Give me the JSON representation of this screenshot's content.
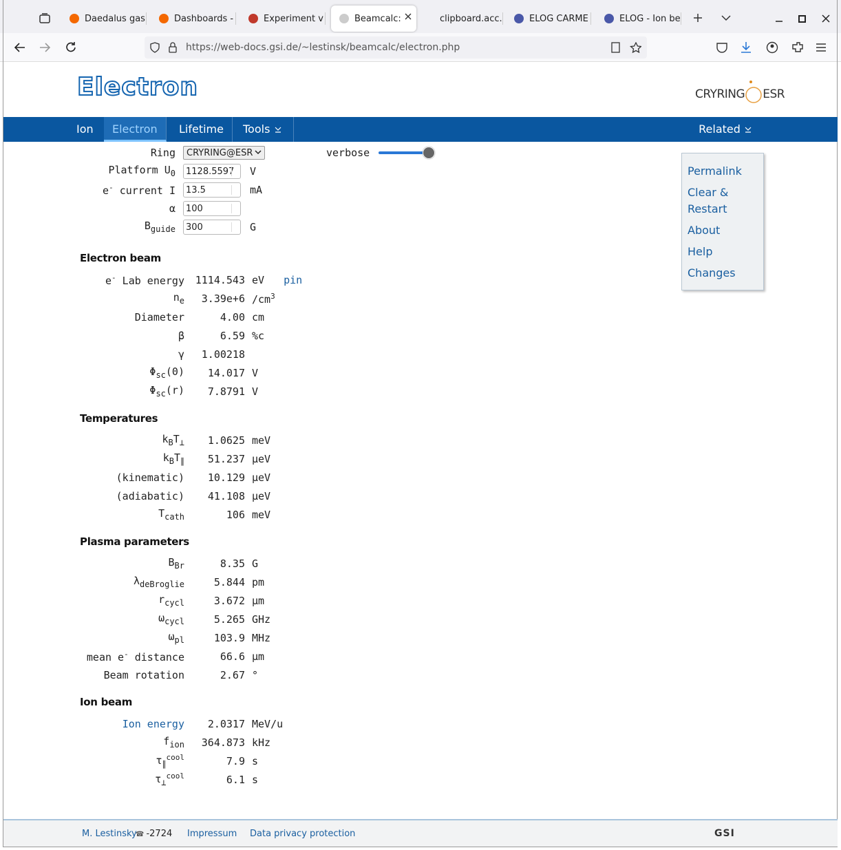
{
  "browser": {
    "tabs": [
      "Daedalus gas",
      "Dashboards -",
      "Experiment v",
      "Beamcalc: E",
      "clipboard.acc.gsi",
      "ELOG CARME",
      "ELOG - Ion be"
    ],
    "active_tab": 3,
    "url": "https://web-docs.gsi.de/~lestinsk/beamcalc/electron.php"
  },
  "header": {
    "title": "Electron",
    "logo_left": "CRYRING",
    "logo_right": "ESR"
  },
  "nav": {
    "items": [
      "Ion",
      "Electron",
      "Lifetime",
      "Tools"
    ],
    "active": 1,
    "related": "Related"
  },
  "inputs": {
    "ring": {
      "label": "Ring",
      "value": "CRYRING@ESR"
    },
    "verbose": "verbose",
    "fields": [
      {
        "label": [
          {
            "text": "Platform U"
          },
          {
            "text": "0",
            "sub": true
          }
        ],
        "value": "1128.5597",
        "unit": "V"
      },
      {
        "label": [
          {
            "text": "e"
          },
          {
            "text": "-",
            "sup": true
          },
          {
            "text": " current I"
          }
        ],
        "value": "13.5",
        "unit": "mA"
      },
      {
        "label": "α",
        "value": "100"
      },
      {
        "label": [
          {
            "text": "B"
          },
          {
            "text": "guide",
            "sub": true
          }
        ],
        "value": "300",
        "unit": "G"
      }
    ]
  },
  "sidebar": [
    "Permalink",
    "Clear & Restart",
    "About",
    "Help",
    "Changes"
  ],
  "sections": [
    {
      "title": "Electron beam",
      "rows": [
        {
          "label": [
            {
              "text": "e"
            },
            {
              "text": "-",
              "sup": true
            },
            {
              "text": " Lab energy"
            }
          ],
          "value": "1114.543",
          "unit": "eV",
          "link": "pin"
        },
        {
          "label": [
            {
              "text": "n"
            },
            {
              "text": "e",
              "sub": true
            }
          ],
          "value": "3.39e+6",
          "unit": [
            {
              "text": "/cm"
            },
            {
              "text": "3",
              "sup": true
            }
          ]
        },
        {
          "label": "Diameter",
          "value": "4.00",
          "unit": "cm"
        },
        {
          "label": "β",
          "value": "6.59",
          "unit": "%c"
        },
        {
          "label": "γ",
          "value": "1.00218"
        },
        {
          "label": [
            {
              "text": "Φ"
            },
            {
              "text": "sc",
              "sub": true
            },
            {
              "text": "(0)"
            }
          ],
          "value": "14.017",
          "unit": "V"
        },
        {
          "label": [
            {
              "text": "Φ"
            },
            {
              "text": "sc",
              "sub": true
            },
            {
              "text": "(r)"
            }
          ],
          "value": "7.8791",
          "unit": "V"
        }
      ]
    },
    {
      "title": "Temperatures",
      "rows": [
        {
          "label": [
            {
              "text": "k"
            },
            {
              "text": "B",
              "sub": true
            },
            {
              "text": "T"
            },
            {
              "text": "⊥",
              "sub": true
            }
          ],
          "value": "1.0625",
          "unit": "meV"
        },
        {
          "label": [
            {
              "text": "k"
            },
            {
              "text": "B",
              "sub": true
            },
            {
              "text": "T"
            },
            {
              "text": "∥",
              "sub": true
            }
          ],
          "value": "51.237",
          "unit": "µeV"
        },
        {
          "label": "(kinematic)",
          "value": "10.129",
          "unit": "µeV"
        },
        {
          "label": "(adiabatic)",
          "value": "41.108",
          "unit": "µeV"
        },
        {
          "label": [
            {
              "text": "T"
            },
            {
              "text": "cath",
              "sub": true
            }
          ],
          "value": "106",
          "unit": "meV"
        }
      ]
    },
    {
      "title": "Plasma parameters",
      "rows": [
        {
          "label": [
            {
              "text": "B"
            },
            {
              "text": "Br",
              "sub": true
            }
          ],
          "value": "8.35",
          "unit": "G"
        },
        {
          "label": [
            {
              "text": "λ"
            },
            {
              "text": "deBroglie",
              "sub": true
            }
          ],
          "value": "5.844",
          "unit": "pm"
        },
        {
          "label": [
            {
              "text": "r"
            },
            {
              "text": "cycl",
              "sub": true
            }
          ],
          "value": "3.672",
          "unit": "µm"
        },
        {
          "label": [
            {
              "text": "ω"
            },
            {
              "text": "cycl",
              "sub": true
            }
          ],
          "value": "5.265",
          "unit": "GHz"
        },
        {
          "label": [
            {
              "text": "ω"
            },
            {
              "text": "pl",
              "sub": true
            }
          ],
          "value": "103.9",
          "unit": "MHz"
        },
        {
          "label": [
            {
              "text": "mean e"
            },
            {
              "text": "-",
              "sup": true
            },
            {
              "text": " distance"
            }
          ],
          "value": "66.6",
          "unit": "µm"
        },
        {
          "label": "Beam rotation",
          "value": "2.67",
          "unit": "°"
        }
      ]
    },
    {
      "title": "Ion beam",
      "rows": [
        {
          "label": "Ion energy",
          "label_link": true,
          "value": "2.0317",
          "unit": "MeV/u"
        },
        {
          "label": [
            {
              "text": "f"
            },
            {
              "text": "ion",
              "sub": true
            }
          ],
          "value": "364.873",
          "unit": "kHz"
        },
        {
          "label": [
            {
              "text": "τ"
            },
            {
              "text": "∥",
              "sub": true
            },
            {
              "text": "cool",
              "sup": true
            }
          ],
          "value": "7.9",
          "unit": "s"
        },
        {
          "label": [
            {
              "text": "τ"
            },
            {
              "text": "⊥",
              "sub": true
            },
            {
              "text": "cool",
              "sup": true
            }
          ],
          "value": "6.1",
          "unit": "s"
        }
      ]
    }
  ],
  "footer": {
    "author": "M. Lestinsky",
    "phone": "-2724",
    "links": [
      "Impressum",
      "Data privacy protection"
    ],
    "logo": "GSI"
  }
}
